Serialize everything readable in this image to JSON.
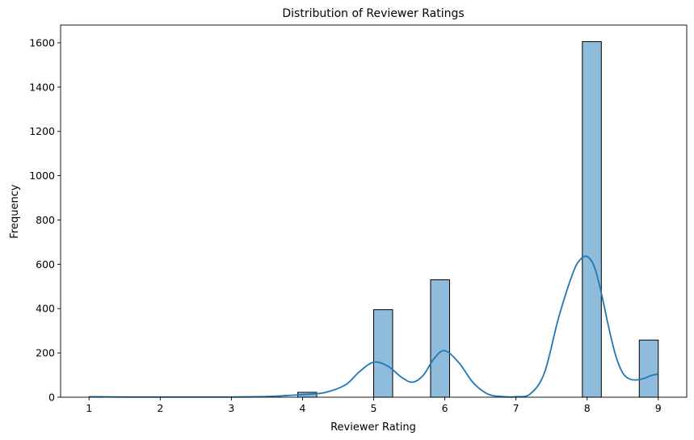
{
  "chart_data": {
    "type": "bar",
    "subtype": "histogram-with-kde",
    "title": "Distribution of Reviewer Ratings",
    "xlabel": "Reviewer Rating",
    "ylabel": "Frequency",
    "xlim": [
      0.6,
      9.4
    ],
    "ylim": [
      0,
      1680
    ],
    "x_ticks": [
      "1",
      "2",
      "3",
      "4",
      "5",
      "6",
      "7",
      "8",
      "9"
    ],
    "y_ticks": [
      "0",
      "200",
      "400",
      "600",
      "800",
      "1000",
      "1200",
      "1400",
      "1600"
    ],
    "bins": [
      {
        "x0": 1.0,
        "x1": 1.267,
        "count": 2
      },
      {
        "x0": 3.933,
        "x1": 4.2,
        "count": 22
      },
      {
        "x0": 5.0,
        "x1": 5.267,
        "count": 395
      },
      {
        "x0": 5.8,
        "x1": 6.067,
        "count": 530
      },
      {
        "x0": 7.933,
        "x1": 8.2,
        "count": 1605
      },
      {
        "x0": 8.733,
        "x1": 9.0,
        "count": 258
      }
    ],
    "kde": {
      "x": [
        1.0,
        1.5,
        2.0,
        2.5,
        3.0,
        3.5,
        3.8,
        4.0,
        4.3,
        4.6,
        4.8,
        5.0,
        5.2,
        5.4,
        5.55,
        5.7,
        5.85,
        6.0,
        6.2,
        6.4,
        6.6,
        6.8,
        7.0,
        7.2,
        7.4,
        7.6,
        7.8,
        7.9,
        8.0,
        8.1,
        8.2,
        8.3,
        8.4,
        8.5,
        8.6,
        8.7,
        8.8,
        8.9,
        9.0
      ],
      "y": [
        2,
        1,
        1,
        1,
        1,
        3,
        8,
        12,
        20,
        55,
        115,
        158,
        140,
        88,
        68,
        100,
        175,
        210,
        155,
        65,
        15,
        3,
        2,
        15,
        110,
        360,
        560,
        620,
        635,
        590,
        470,
        320,
        190,
        110,
        82,
        78,
        85,
        98,
        105
      ]
    },
    "colors": {
      "bar_fill": "#8fbbdd",
      "bar_edge": "#000000",
      "kde_line": "#1f77b4"
    },
    "grid": false
  }
}
